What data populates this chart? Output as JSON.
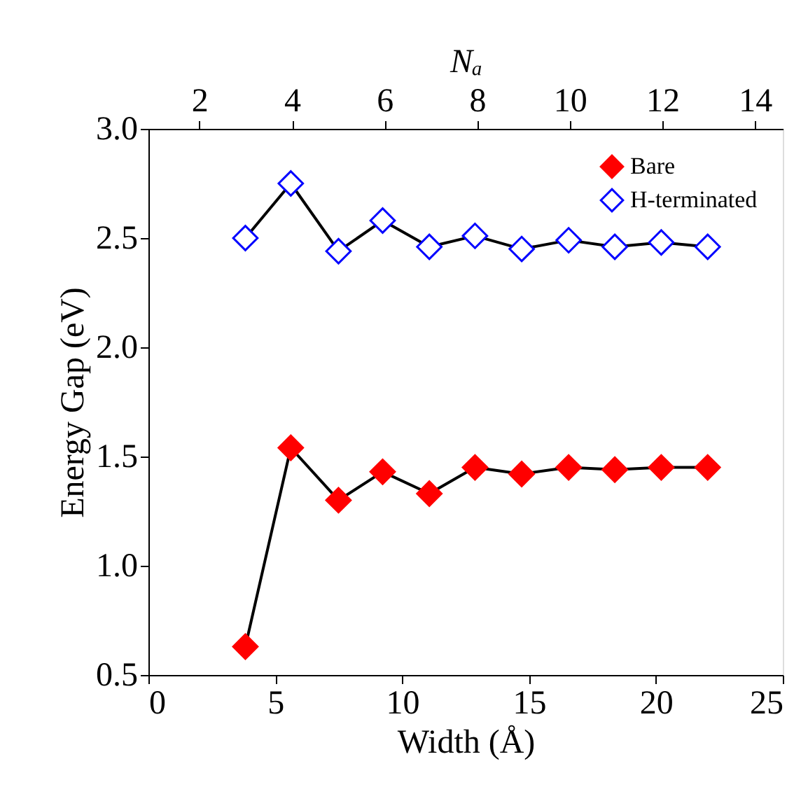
{
  "chart_data": {
    "type": "line",
    "xlabel": "Width (Å)",
    "ylabel": "Energy Gap (eV)",
    "x2label": "Nₐ",
    "x": [
      3.82,
      5.61,
      7.49,
      9.23,
      11.07,
      12.87,
      14.71,
      16.56,
      18.38,
      20.21,
      22.04
    ],
    "series": [
      {
        "name": "Bare",
        "color": "#ff0000",
        "values": [
          0.63,
          1.54,
          1.3,
          1.43,
          1.33,
          1.45,
          1.42,
          1.45,
          1.44,
          1.45,
          1.45
        ]
      },
      {
        "name": "H-terminated",
        "color": "#0000ff",
        "values": [
          2.5,
          2.75,
          2.44,
          2.58,
          2.46,
          2.51,
          2.45,
          2.49,
          2.46,
          2.48,
          2.46
        ]
      }
    ],
    "xlim": [
      0,
      25
    ],
    "xticks": [
      0,
      5,
      10,
      15,
      20,
      25
    ],
    "x2lim": [
      0.9,
      14.6
    ],
    "x2ticks": [
      2,
      4,
      6,
      8,
      10,
      12,
      14
    ],
    "ylim": [
      0.5,
      3.0
    ],
    "yticks": [
      {
        "value": 0.5,
        "label": "0.5"
      },
      {
        "value": 1,
        "label": "1.0"
      },
      {
        "value": 1.5,
        "label": "1.5"
      },
      {
        "value": 2,
        "label": "2.0"
      },
      {
        "value": 2.5,
        "label": "2.5"
      },
      {
        "value": 3,
        "label": "3.0"
      }
    ],
    "marker": "diamond",
    "line_style": "solid",
    "legend": "top right",
    "grid": false
  }
}
